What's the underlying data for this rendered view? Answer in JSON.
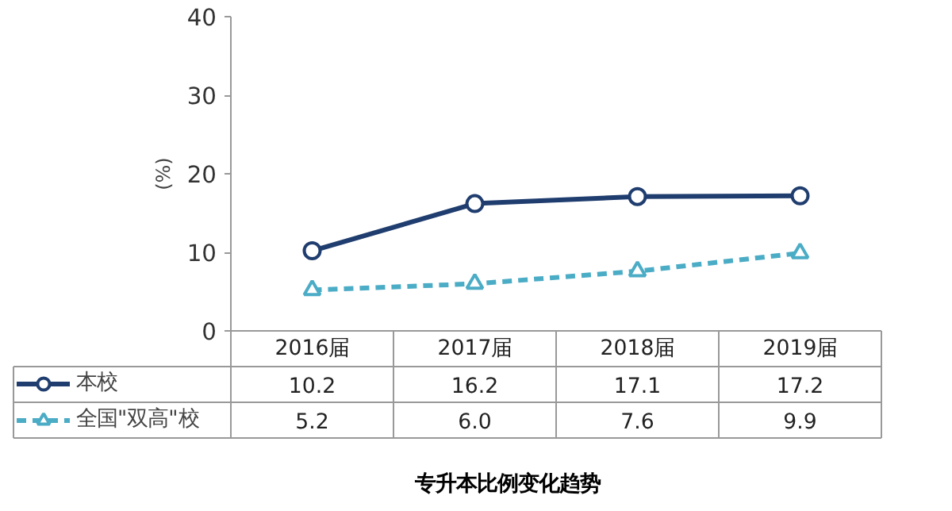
{
  "chart_data": {
    "type": "line",
    "title": "专升本比例变化趋势",
    "ylabel": "(%)",
    "categories": [
      "2016届",
      "2017届",
      "2018届",
      "2019届"
    ],
    "series": [
      {
        "name": "本校",
        "color": "#1f3d6e",
        "values": [
          10.2,
          16.2,
          17.1,
          17.2
        ],
        "marker": "circle",
        "line_style": "solid"
      },
      {
        "name": "全国\"双高\"校",
        "color": "#4bacc6",
        "values": [
          5.2,
          6.0,
          7.6,
          9.9
        ],
        "value_labels": [
          "5.2",
          "6.0",
          "7.6",
          "9.9"
        ],
        "marker": "triangle",
        "line_style": "dashed"
      }
    ],
    "ylim": [
      0,
      40
    ],
    "yticks": [
      0,
      10,
      20,
      30,
      40
    ],
    "grid": false,
    "legend": "bottom left",
    "data_labels": true
  }
}
